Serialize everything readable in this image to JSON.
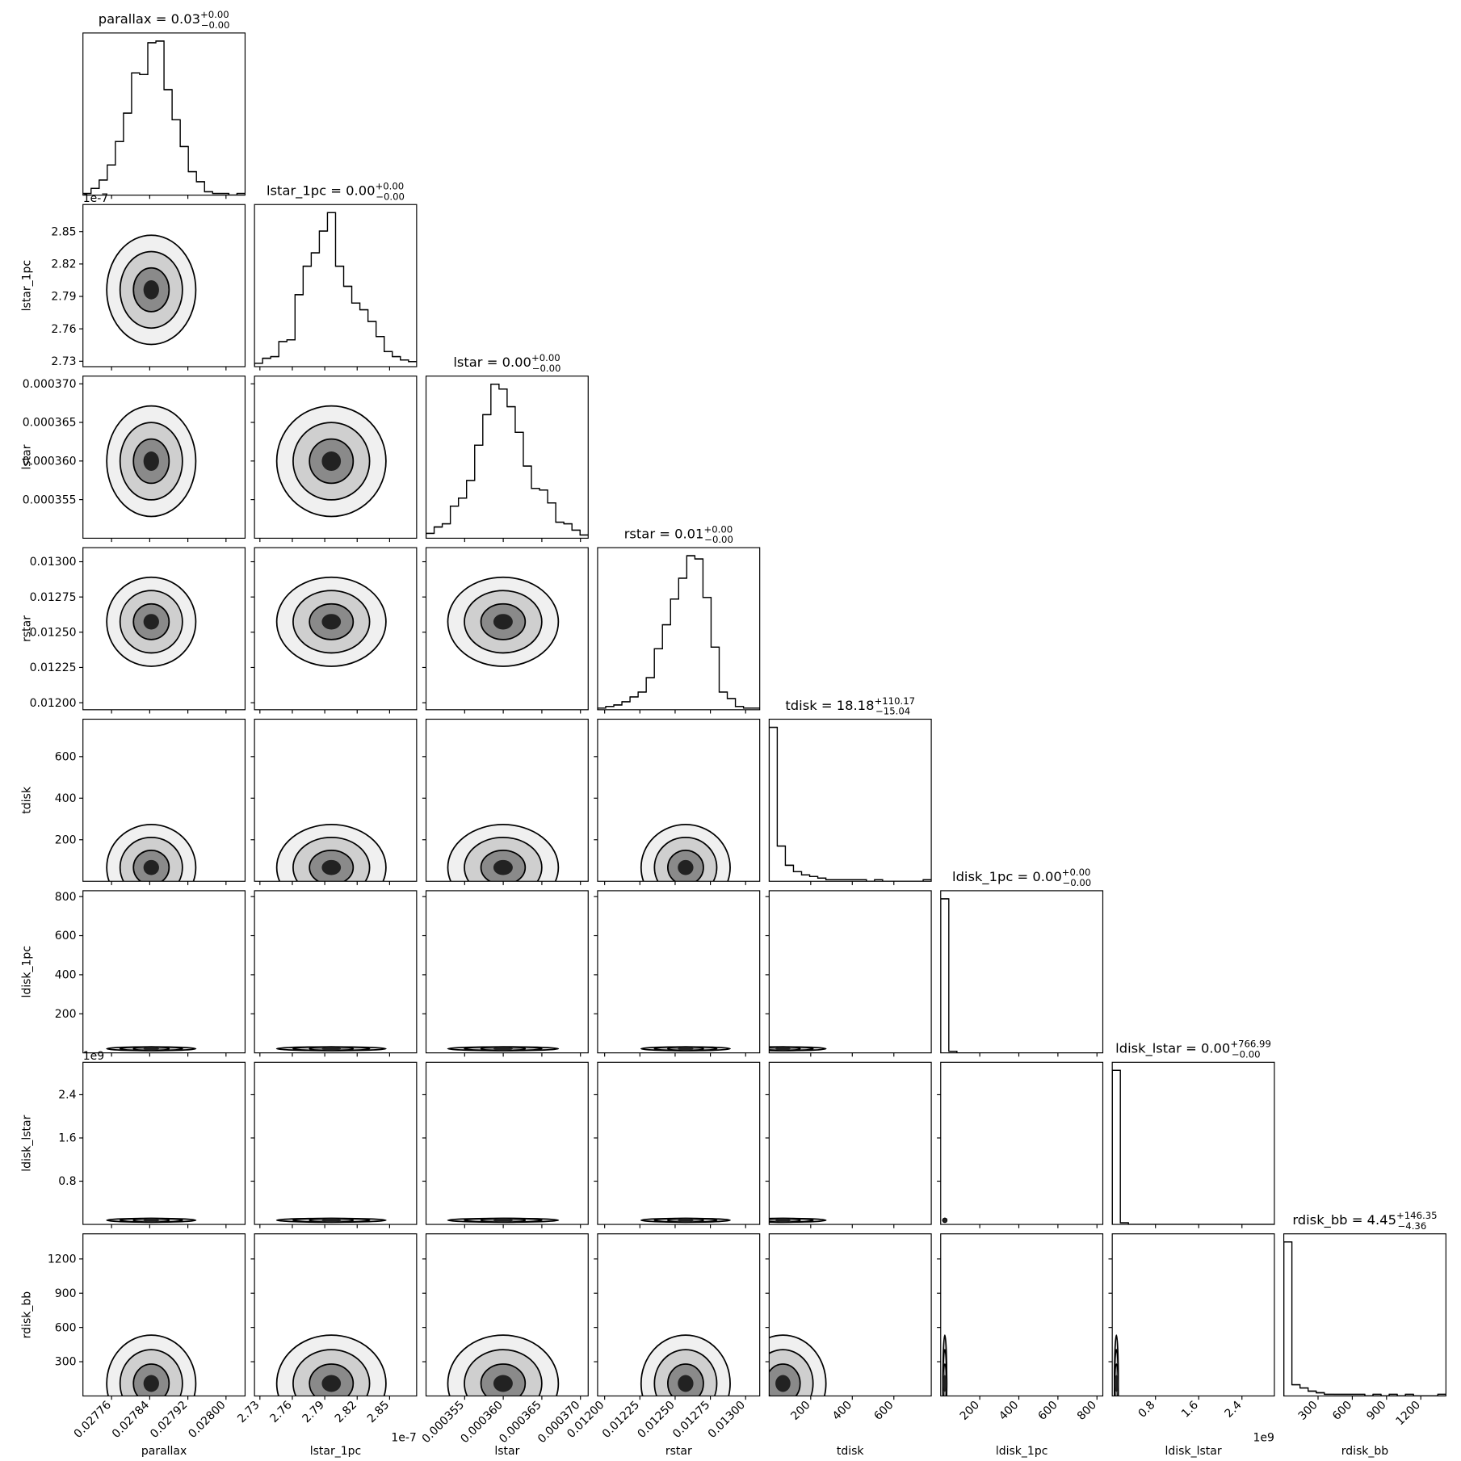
{
  "chart_data": {
    "type": "corner",
    "parameters": [
      {
        "name": "parallax",
        "title": {
          "main": "parallax = 0.03",
          "plus": "+0.00",
          "minus": "−0.00"
        },
        "lim": [
          0.0277,
          0.02804
        ],
        "ticks": [
          0.02776,
          0.02784,
          0.02792,
          {
            "value": 0.028,
            "label": "0.02800"
          }
        ],
        "counts": [
          1,
          4,
          9,
          18,
          32,
          49,
          73,
          72,
          91,
          92,
          63,
          45,
          29,
          14,
          8,
          2,
          1,
          1,
          0,
          1
        ]
      },
      {
        "name": "lstar_1pc",
        "title": {
          "main": "lstar_1pc = 0.00",
          "plus": "+0.00",
          "minus": "−0.00"
        },
        "lim": [
          2.725,
          2.875
        ],
        "ticks": [
          2.73,
          2.76,
          2.79,
          2.82,
          2.85
        ],
        "offset": "1e-7",
        "counts": [
          2,
          5,
          6,
          15,
          16,
          43,
          60,
          68,
          81,
          92,
          60,
          48,
          38,
          34,
          27,
          18,
          9,
          6,
          4,
          3
        ]
      },
      {
        "name": "lstar",
        "title": {
          "main": "lstar = 0.00",
          "plus": "+0.00",
          "minus": "−0.00"
        },
        "lim": [
          0.00035,
          0.000371
        ],
        "ticks": [
          0.000355,
          {
            "value": 0.00036,
            "label": "0.000360"
          },
          0.000365,
          {
            "value": 0.00037,
            "label": "0.000370"
          }
        ],
        "counts": [
          3,
          7,
          9,
          20,
          25,
          36,
          58,
          77,
          96,
          93,
          82,
          66,
          45,
          31,
          30,
          22,
          10,
          9,
          5,
          2
        ]
      },
      {
        "name": "rstar",
        "title": {
          "main": "rstar = 0.01",
          "plus": "+0.00",
          "minus": "−0.00"
        },
        "lim": [
          0.01195,
          0.0131
        ],
        "ticks": [
          {
            "value": 0.012,
            "label": "0.01200"
          },
          {
            "value": 0.01225,
            "label": "0.01225"
          },
          {
            "value": 0.0125,
            "label": "0.01250"
          },
          {
            "value": 0.01275,
            "label": "0.01275"
          },
          {
            "value": 0.013,
            "label": "0.01300"
          }
        ],
        "counts": [
          1,
          2,
          3,
          5,
          8,
          11,
          20,
          38,
          53,
          69,
          82,
          96,
          94,
          70,
          39,
          11,
          7,
          2,
          1,
          1
        ]
      },
      {
        "name": "tdisk",
        "title": {
          "main": "tdisk = 18.18",
          "plus": "+110.17",
          "minus": "−15.04"
        },
        "lim": [
          0,
          780
        ],
        "ticks": [
          200,
          400,
          600
        ],
        "counts": [
          96,
          22,
          10,
          6,
          4,
          3,
          2,
          1,
          1,
          1,
          1,
          1,
          0,
          1,
          0,
          0,
          0,
          0,
          0,
          1
        ]
      },
      {
        "name": "ldisk_1pc",
        "title": {
          "main": "ldisk_1pc = 0.00",
          "plus": "+0.00",
          "minus": "−0.00"
        },
        "lim": [
          0,
          830
        ],
        "ticks": [
          200,
          400,
          600,
          800
        ],
        "counts": [
          97,
          1,
          0,
          0,
          0,
          0,
          0,
          0,
          0,
          0,
          0,
          0,
          0,
          0,
          0,
          0,
          0,
          0,
          0,
          0
        ]
      },
      {
        "name": "ldisk_lstar",
        "title": {
          "main": "ldisk_lstar = 0.00",
          "plus": "+766.99",
          "minus": "−0.00"
        },
        "lim": [
          0,
          3.0
        ],
        "ticks": [
          0.8,
          1.6,
          2.4
        ],
        "offset": "1e9",
        "counts": [
          96,
          1,
          0,
          0,
          0,
          0,
          0,
          0,
          0,
          0,
          0,
          0,
          0,
          0,
          0,
          0,
          0,
          0,
          0,
          0
        ]
      },
      {
        "name": "rdisk_bb",
        "title": {
          "main": "rdisk_bb = 4.45",
          "plus": "+146.35",
          "minus": "−4.36"
        },
        "lim": [
          0,
          1420
        ],
        "ticks": [
          300,
          600,
          900,
          1200
        ],
        "counts": [
          96,
          7,
          5,
          3,
          2,
          1,
          1,
          1,
          1,
          1,
          0,
          1,
          0,
          1,
          0,
          1,
          0,
          0,
          0,
          1
        ]
      }
    ]
  }
}
